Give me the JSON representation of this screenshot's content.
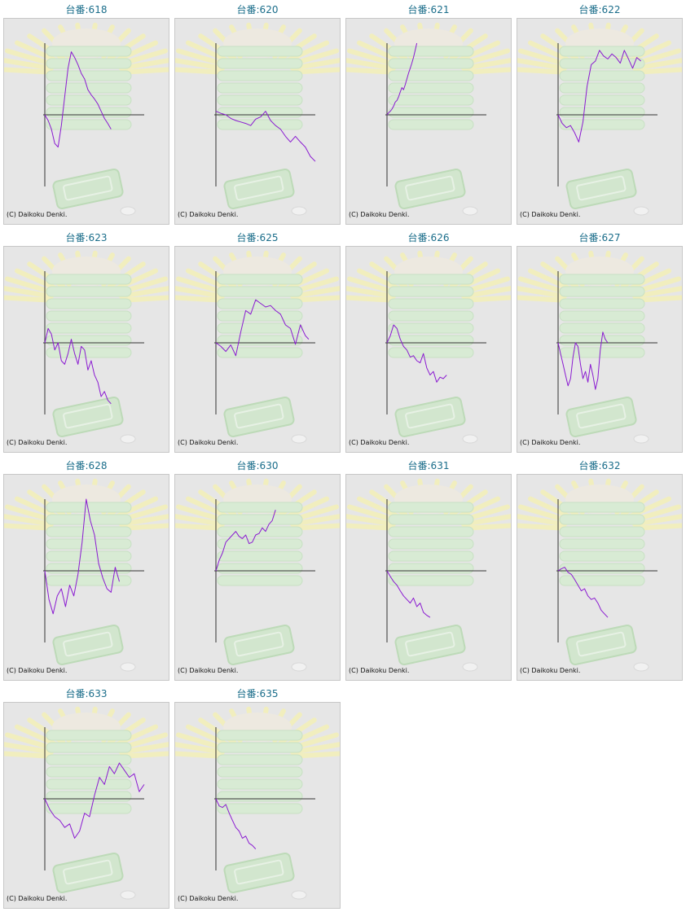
{
  "title_prefix": "台番:",
  "copyright": "(C) Daikoku Denki.",
  "colors": {
    "title": "#1a6d8a",
    "line": "#8a1ad1",
    "axis": "#333333",
    "background": "#e6e6e6"
  },
  "chart_data": [
    {
      "type": "line",
      "title": "台番:618",
      "label": "618",
      "ylim": [
        -100,
        100
      ],
      "x": [
        0,
        4,
        8,
        12,
        16,
        20,
        24,
        28,
        32,
        36,
        40,
        44,
        48,
        52,
        56,
        60,
        64,
        68,
        72,
        76,
        80
      ],
      "values": [
        0,
        -8,
        -20,
        -40,
        -45,
        -15,
        25,
        65,
        88,
        80,
        70,
        58,
        50,
        35,
        28,
        22,
        15,
        5,
        -5,
        -12,
        -20
      ]
    },
    {
      "type": "line",
      "title": "台番:620",
      "label": "620",
      "ylim": [
        -100,
        100
      ],
      "x": [
        0,
        6,
        12,
        18,
        24,
        30,
        36,
        42,
        48,
        54,
        60,
        66,
        72,
        78,
        84,
        90,
        96,
        102,
        108,
        114,
        120
      ],
      "values": [
        5,
        2,
        0,
        -5,
        -8,
        -10,
        -12,
        -15,
        -6,
        -3,
        5,
        -8,
        -15,
        -20,
        -30,
        -38,
        -30,
        -38,
        -45,
        -58,
        -65
      ]
    },
    {
      "type": "line",
      "title": "台番:621",
      "label": "621",
      "ylim": [
        -100,
        100
      ],
      "x": [
        0,
        2,
        4,
        6,
        8,
        10,
        12,
        14,
        16,
        18,
        20,
        22,
        24,
        26,
        28,
        30,
        32,
        34,
        36
      ],
      "values": [
        0,
        3,
        5,
        8,
        12,
        18,
        20,
        25,
        32,
        38,
        35,
        42,
        50,
        58,
        65,
        72,
        80,
        90,
        100
      ]
    },
    {
      "type": "line",
      "title": "台番:622",
      "label": "622",
      "ylim": [
        -100,
        100
      ],
      "x": [
        0,
        5,
        10,
        15,
        20,
        25,
        30,
        35,
        40,
        45,
        50,
        55,
        60,
        65,
        70,
        75,
        80,
        85,
        90,
        95,
        100
      ],
      "values": [
        0,
        -12,
        -18,
        -15,
        -25,
        -38,
        -10,
        40,
        70,
        75,
        90,
        82,
        78,
        85,
        80,
        72,
        90,
        78,
        65,
        80,
        75
      ]
    },
    {
      "type": "line",
      "title": "台番:623",
      "label": "623",
      "ylim": [
        -100,
        100
      ],
      "x": [
        0,
        4,
        8,
        12,
        16,
        20,
        24,
        28,
        32,
        36,
        40,
        44,
        48,
        52,
        56,
        60,
        64,
        68,
        72,
        76,
        80
      ],
      "values": [
        0,
        20,
        12,
        -10,
        0,
        -25,
        -30,
        -15,
        5,
        -15,
        -30,
        -5,
        -10,
        -38,
        -25,
        -45,
        -55,
        -75,
        -68,
        -80,
        -85
      ]
    },
    {
      "type": "line",
      "title": "台番:625",
      "label": "625",
      "ylim": [
        -100,
        100
      ],
      "x": [
        0,
        6,
        12,
        18,
        24,
        30,
        36,
        42,
        48,
        54,
        60,
        66,
        72,
        78,
        84,
        90,
        96,
        102,
        108,
        112
      ],
      "values": [
        0,
        -5,
        -12,
        -3,
        -18,
        15,
        45,
        40,
        60,
        55,
        50,
        52,
        45,
        40,
        25,
        20,
        -2,
        25,
        10,
        5
      ]
    },
    {
      "type": "line",
      "title": "台番:626",
      "label": "626",
      "ylim": [
        -100,
        100
      ],
      "x": [
        0,
        4,
        8,
        12,
        16,
        20,
        24,
        28,
        32,
        36,
        40,
        44,
        48,
        52,
        56,
        60,
        64,
        68,
        72
      ],
      "values": [
        0,
        10,
        25,
        20,
        5,
        -5,
        -10,
        -20,
        -18,
        -25,
        -28,
        -15,
        -35,
        -45,
        -40,
        -55,
        -48,
        -50,
        -45
      ]
    },
    {
      "type": "line",
      "title": "台番:627",
      "label": "627",
      "ylim": [
        -100,
        100
      ],
      "x": [
        0,
        3,
        6,
        9,
        12,
        15,
        18,
        21,
        24,
        27,
        30,
        33,
        36,
        39,
        42,
        45,
        48,
        51,
        54,
        57,
        60
      ],
      "values": [
        0,
        -15,
        -30,
        -45,
        -60,
        -50,
        -20,
        0,
        -5,
        -30,
        -50,
        -40,
        -55,
        -30,
        -45,
        -65,
        -50,
        -10,
        15,
        5,
        0
      ]
    },
    {
      "type": "line",
      "title": "台番:628",
      "label": "628",
      "ylim": [
        -100,
        100
      ],
      "x": [
        0,
        5,
        10,
        15,
        20,
        25,
        30,
        35,
        40,
        45,
        50,
        55,
        60,
        65,
        70,
        75,
        80,
        85,
        90
      ],
      "values": [
        0,
        -40,
        -60,
        -35,
        -25,
        -50,
        -20,
        -35,
        -5,
        40,
        100,
        70,
        50,
        10,
        -10,
        -25,
        -30,
        5,
        -15
      ]
    },
    {
      "type": "line",
      "title": "台番:630",
      "label": "630",
      "ylim": [
        -100,
        100
      ],
      "x": [
        0,
        4,
        8,
        12,
        16,
        20,
        24,
        28,
        32,
        36,
        40,
        44,
        48,
        52,
        56,
        60,
        64,
        68,
        72
      ],
      "values": [
        0,
        15,
        25,
        40,
        45,
        50,
        55,
        48,
        45,
        50,
        38,
        40,
        50,
        52,
        60,
        55,
        65,
        70,
        85
      ]
    },
    {
      "type": "line",
      "title": "台番:631",
      "label": "631",
      "ylim": [
        -100,
        100
      ],
      "x": [
        0,
        4,
        8,
        12,
        16,
        20,
        24,
        28,
        32,
        36,
        40,
        44,
        48,
        52
      ],
      "values": [
        0,
        -8,
        -15,
        -20,
        -28,
        -35,
        -40,
        -45,
        -38,
        -50,
        -45,
        -58,
        -62,
        -65
      ]
    },
    {
      "type": "line",
      "title": "台番:632",
      "label": "632",
      "ylim": [
        -100,
        100
      ],
      "x": [
        0,
        4,
        8,
        12,
        16,
        20,
        24,
        28,
        32,
        36,
        40,
        44,
        48,
        52,
        56,
        60
      ],
      "values": [
        0,
        3,
        5,
        -2,
        -5,
        -12,
        -20,
        -28,
        -25,
        -35,
        -40,
        -38,
        -45,
        -55,
        -60,
        -65
      ]
    },
    {
      "type": "line",
      "title": "台番:633",
      "label": "633",
      "ylim": [
        -100,
        100
      ],
      "x": [
        0,
        6,
        12,
        18,
        24,
        30,
        36,
        42,
        48,
        54,
        60,
        66,
        72,
        78,
        84,
        90,
        96,
        102,
        108,
        114,
        120
      ],
      "values": [
        0,
        -15,
        -25,
        -30,
        -40,
        -35,
        -55,
        -45,
        -20,
        -25,
        5,
        30,
        20,
        45,
        35,
        50,
        40,
        30,
        35,
        10,
        20
      ]
    },
    {
      "type": "line",
      "title": "台番:635",
      "label": "635",
      "ylim": [
        -100,
        100
      ],
      "x": [
        0,
        4,
        8,
        12,
        16,
        20,
        24,
        28,
        32,
        36,
        40,
        44,
        48
      ],
      "values": [
        0,
        -10,
        -12,
        -8,
        -20,
        -30,
        -40,
        -45,
        -55,
        -52,
        -62,
        -65,
        -70
      ]
    }
  ]
}
